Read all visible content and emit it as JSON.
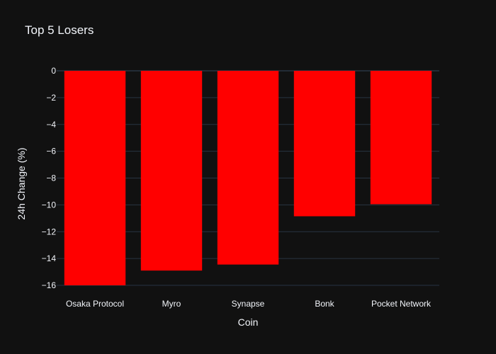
{
  "chart_data": {
    "type": "bar",
    "title": "Top 5 Losers",
    "xlabel": "Coin",
    "ylabel": "24h Change (%)",
    "categories": [
      "Osaka Protocol",
      "Myro",
      "Synapse",
      "Bonk",
      "Pocket Network"
    ],
    "values": [
      -16.0,
      -14.9,
      -14.45,
      -10.85,
      -9.95
    ],
    "ylim": [
      -16,
      0
    ],
    "yticks": [
      0,
      -2,
      -4,
      -6,
      -8,
      -10,
      -12,
      -14,
      -16
    ],
    "ytick_labels": [
      "0",
      "−2",
      "−4",
      "−6",
      "−8",
      "−10",
      "−12",
      "−14",
      "−16"
    ],
    "bar_color": "#ff0000",
    "background_color": "#111111",
    "grid": true,
    "grid_color": "#283442",
    "text_color": "#f2f5fa"
  }
}
